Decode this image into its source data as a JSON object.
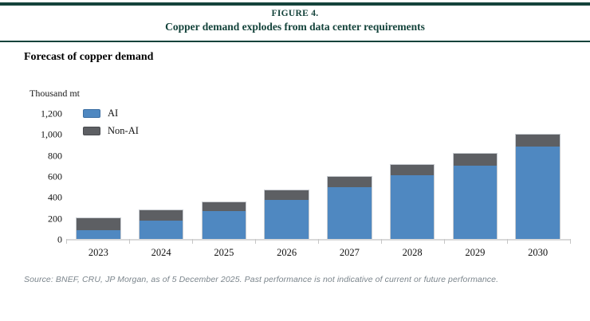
{
  "header": {
    "figure_label": "FIGURE 4.",
    "title": "Copper demand explodes from data center requirements"
  },
  "subtitle": "Forecast of copper demand",
  "source_note": "Source: BNEF, CRU, JP Morgan, as of 5 December 2025. Past performance is not indicative of current or future performance.",
  "colors": {
    "header_rule_green": "#14433b",
    "header_text_green": "#14433b",
    "ai_blue": "#4f88c1",
    "ai_blue_border": "#3d6fa3",
    "non_ai_gray": "#5d5f63",
    "non_ai_gray_border": "#494b4f",
    "axis_line_gray": "#d9d9d9",
    "source_text_gray": "#7b858c"
  },
  "chart_data": {
    "type": "bar",
    "stacked": true,
    "title": "Forecast of copper demand",
    "ylabel": "Thousand mt",
    "xlabel": "",
    "categories": [
      "2023",
      "2024",
      "2025",
      "2026",
      "2027",
      "2028",
      "2029",
      "2030"
    ],
    "series": [
      {
        "name": "AI",
        "color": "#4f88c1",
        "border_color": "#3d6fa3",
        "values": [
          100,
          190,
          280,
          385,
          510,
          625,
          715,
          895
        ]
      },
      {
        "name": "Non-AI",
        "color": "#5d5f63",
        "border_color": "#494b4f",
        "values": [
          110,
          95,
          85,
          90,
          95,
          100,
          115,
          115
        ]
      }
    ],
    "totals": [
      210,
      285,
      365,
      475,
      605,
      725,
      830,
      1010
    ],
    "ylim": [
      0,
      1200
    ],
    "yticks": [
      0,
      200,
      400,
      600,
      800,
      1000,
      1200
    ],
    "grid": false,
    "legend_position": "top-left-inside",
    "legend_entries": [
      "AI",
      "Non-AI"
    ]
  }
}
